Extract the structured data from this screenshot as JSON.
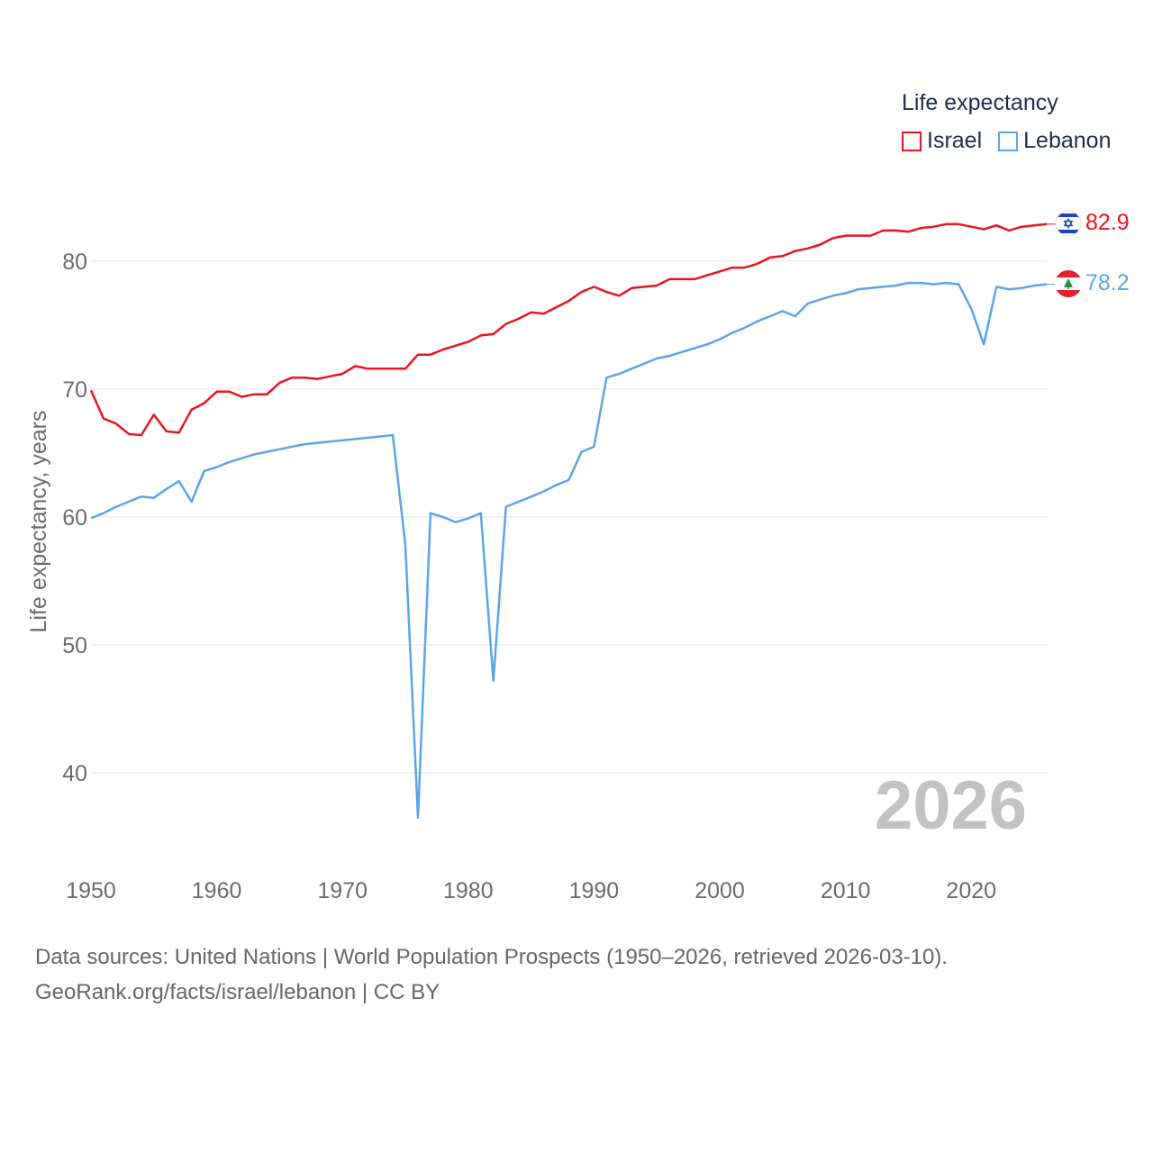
{
  "chart_data": {
    "type": "line",
    "title": "Life expectancy",
    "ylabel": "Life expectancy, years",
    "xlabel": "",
    "xlim": [
      1950,
      2026
    ],
    "ylim": [
      34,
      88
    ],
    "y_ticks": [
      "40",
      "50",
      "60",
      "70",
      "80"
    ],
    "x_ticks": [
      "1950",
      "1960",
      "1970",
      "1980",
      "1990",
      "2000",
      "2010",
      "2020"
    ],
    "year_label": "2026",
    "legend_position": "top-right",
    "x": [
      1950,
      1951,
      1952,
      1953,
      1954,
      1955,
      1956,
      1957,
      1958,
      1959,
      1960,
      1961,
      1962,
      1963,
      1964,
      1965,
      1966,
      1967,
      1968,
      1969,
      1970,
      1971,
      1972,
      1973,
      1974,
      1975,
      1976,
      1977,
      1978,
      1979,
      1980,
      1981,
      1982,
      1983,
      1984,
      1985,
      1986,
      1987,
      1988,
      1989,
      1990,
      1991,
      1992,
      1993,
      1994,
      1995,
      1996,
      1997,
      1998,
      1999,
      2000,
      2001,
      2002,
      2003,
      2004,
      2005,
      2006,
      2007,
      2008,
      2009,
      2010,
      2011,
      2012,
      2013,
      2014,
      2015,
      2016,
      2017,
      2018,
      2019,
      2020,
      2021,
      2022,
      2023,
      2024,
      2025,
      2026
    ],
    "series": [
      {
        "name": "Israel",
        "color": "#e8161d",
        "end_label": "82.9",
        "values": [
          69.9,
          67.7,
          67.3,
          66.5,
          66.4,
          68.0,
          66.7,
          66.6,
          68.4,
          68.9,
          69.8,
          69.8,
          69.4,
          69.6,
          69.6,
          70.5,
          70.9,
          70.9,
          70.8,
          71.0,
          71.2,
          71.8,
          71.6,
          71.6,
          71.6,
          71.6,
          72.7,
          72.7,
          73.1,
          73.4,
          73.7,
          74.2,
          74.3,
          75.1,
          75.5,
          76.0,
          75.9,
          76.4,
          76.9,
          77.6,
          78.0,
          77.6,
          77.3,
          77.9,
          78.0,
          78.1,
          78.6,
          78.6,
          78.6,
          78.9,
          79.2,
          79.5,
          79.5,
          79.8,
          80.3,
          80.4,
          80.8,
          81.0,
          81.3,
          81.8,
          82.0,
          82.0,
          82.0,
          82.4,
          82.4,
          82.3,
          82.6,
          82.7,
          82.9,
          82.9,
          82.7,
          82.5,
          82.8,
          82.4,
          82.7,
          82.8,
          82.9
        ]
      },
      {
        "name": "Lebanon",
        "color": "#5ba5e6",
        "end_label": "78.2",
        "values": [
          59.9,
          60.3,
          60.8,
          61.2,
          61.6,
          61.5,
          62.2,
          62.8,
          61.2,
          63.6,
          63.9,
          64.3,
          64.6,
          64.9,
          65.1,
          65.3,
          65.5,
          65.7,
          65.8,
          65.9,
          66.0,
          66.1,
          66.2,
          66.3,
          66.4,
          57.8,
          36.5,
          60.3,
          60.0,
          59.6,
          59.9,
          60.3,
          47.2,
          60.8,
          61.2,
          61.6,
          62.0,
          62.5,
          62.9,
          65.1,
          65.5,
          70.9,
          71.2,
          71.6,
          72.0,
          72.4,
          72.6,
          72.9,
          73.2,
          73.5,
          73.9,
          74.4,
          74.8,
          75.3,
          75.7,
          76.1,
          75.7,
          76.7,
          77.0,
          77.3,
          77.5,
          77.8,
          77.9,
          78.0,
          78.1,
          78.3,
          78.3,
          78.2,
          78.3,
          78.2,
          76.3,
          73.5,
          78.0,
          77.8,
          77.9,
          78.1,
          78.2
        ]
      }
    ],
    "source_line1": "Data sources: United Nations | World Population Prospects (1950–2026, retrieved 2026-03-10).",
    "source_line2": "GeoRank.org/facts/israel/lebanon | CC BY"
  }
}
